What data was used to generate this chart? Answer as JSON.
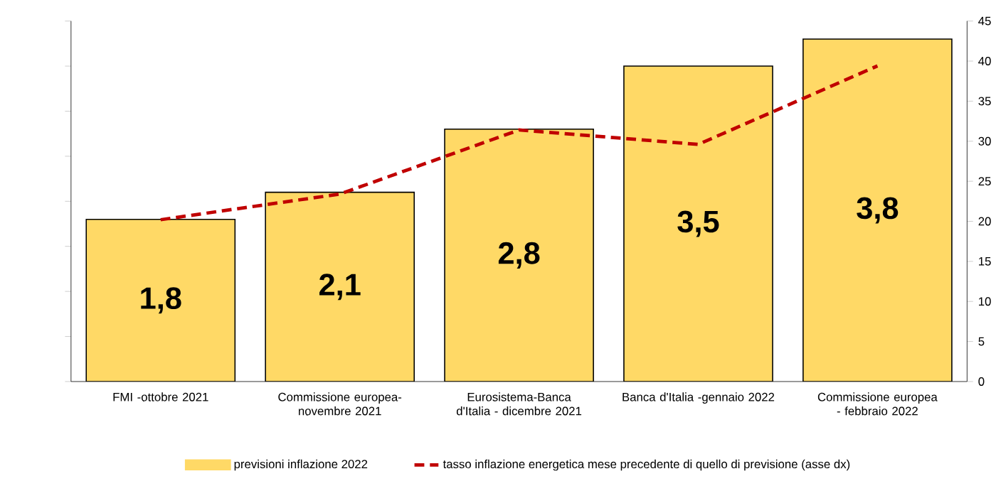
{
  "chart_data": {
    "type": "bar",
    "categories": [
      "FMI -ottobre 2021",
      "Commissione europea-novembre 2021",
      "Eurosistema-Banca  d'Italia - dicembre  2021",
      "Banca d'Italia -gennaio  2022",
      "Commissione europea - febbraio 2022"
    ],
    "series": [
      {
        "name": "previsioni inflazione 2022",
        "axis": "y",
        "color": "#ffd966",
        "values": [
          1.8,
          2.1,
          2.8,
          3.5,
          3.8
        ],
        "value_labels": [
          "1,8",
          "2,1",
          "2,8",
          "3,5",
          "3,8"
        ]
      },
      {
        "name": "tasso inflazione energetica mese precedente di quello di previsione (asse dx)",
        "type": "line",
        "axis": "y2",
        "color": "#c00000",
        "line_style": "dashed",
        "marker": "none",
        "values": [
          20.2,
          23.4,
          31.4,
          29.6,
          39.4
        ]
      }
    ],
    "ylim": [
      0,
      4
    ],
    "yticks": [
      {
        "value": 0,
        "label": null
      },
      {
        "value": 0.5,
        "label": null
      },
      {
        "value": 1,
        "label": null
      },
      {
        "value": 1.5,
        "label": null
      },
      {
        "value": 2,
        "label": null
      },
      {
        "value": 2.5,
        "label": null
      },
      {
        "value": 3,
        "label": null
      },
      {
        "value": 3.5,
        "label": null
      },
      {
        "value": 4,
        "label": null
      }
    ],
    "y2lim": [
      0,
      45
    ],
    "y2ticks": [
      0,
      5,
      10,
      15,
      20,
      25,
      30,
      35,
      40,
      45
    ],
    "legend": "bottom"
  }
}
